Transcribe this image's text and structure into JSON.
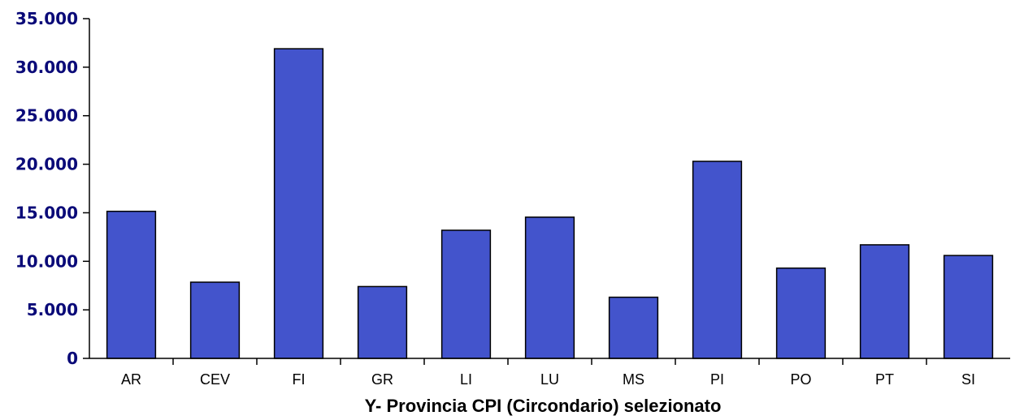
{
  "chart_data": {
    "type": "bar",
    "categories": [
      "AR",
      "CEV",
      "FI",
      "GR",
      "LI",
      "LU",
      "MS",
      "PI",
      "PO",
      "PT",
      "SI"
    ],
    "values": [
      15150,
      7850,
      31900,
      7400,
      13200,
      14550,
      6300,
      20300,
      9300,
      11700,
      10600
    ],
    "title": "",
    "xlabel": "Y- Provincia CPI (Circondario) selezionato",
    "ylabel": "",
    "ylim": [
      0,
      35000
    ],
    "yticks": [
      0,
      5000,
      10000,
      15000,
      20000,
      25000,
      30000,
      35000
    ],
    "ytick_labels": [
      "0",
      "5.000",
      "10.000",
      "15.000",
      "20.000",
      "25.000",
      "30.000",
      "35.000"
    ],
    "grid": false,
    "bar_color": "#4354cc",
    "ytick_color": "#0a0a78"
  }
}
